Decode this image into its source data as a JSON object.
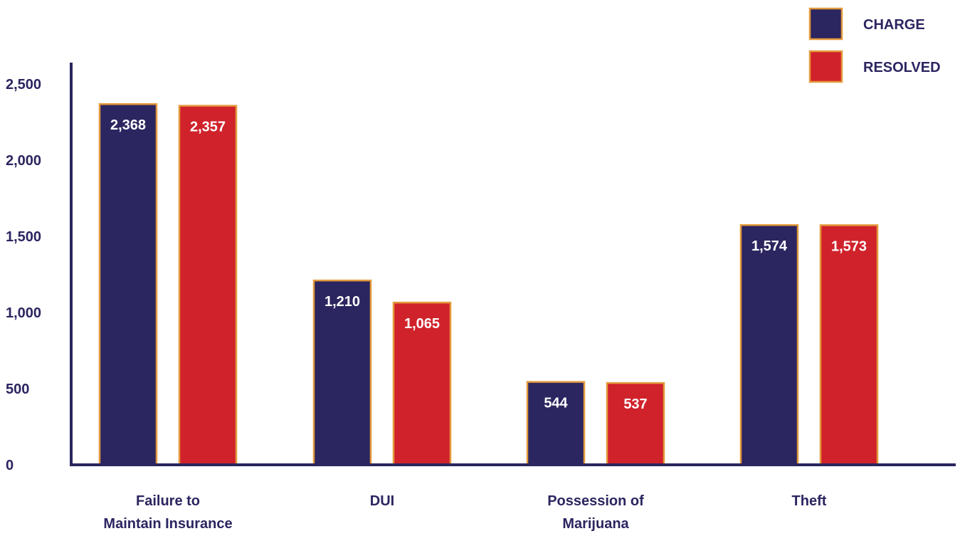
{
  "chart_data": {
    "type": "bar",
    "title": "",
    "xlabel": "",
    "ylabel": "",
    "categories": [
      [
        "Failure to",
        "Maintain Insurance"
      ],
      [
        "DUI"
      ],
      [
        "Possession of",
        "Marijuana"
      ],
      [
        "Theft"
      ]
    ],
    "series": [
      {
        "name": "CHARGE",
        "color": "#2b2560",
        "values": [
          2368,
          1210,
          544,
          1574
        ],
        "labels": [
          "2,368",
          "1,210",
          "544",
          "1,574"
        ]
      },
      {
        "name": "RESOLVED",
        "color": "#d0222b",
        "values": [
          2357,
          1065,
          537,
          1573
        ],
        "labels": [
          "2,357",
          "1,065",
          "537",
          "1,573"
        ]
      }
    ],
    "ylim": [
      0,
      2500
    ],
    "yticks": [
      0,
      500,
      1000,
      1500,
      2000,
      2500
    ],
    "ytick_labels": [
      "0",
      "500",
      "1,000",
      "1,500",
      "2,000",
      "2,500"
    ],
    "legend_position": "top-right",
    "grid": false
  },
  "colors": {
    "axis": "#2b2560",
    "bar_outline": "#e39a3b",
    "text": "#2b2560",
    "bar_label": "#ffffff"
  }
}
